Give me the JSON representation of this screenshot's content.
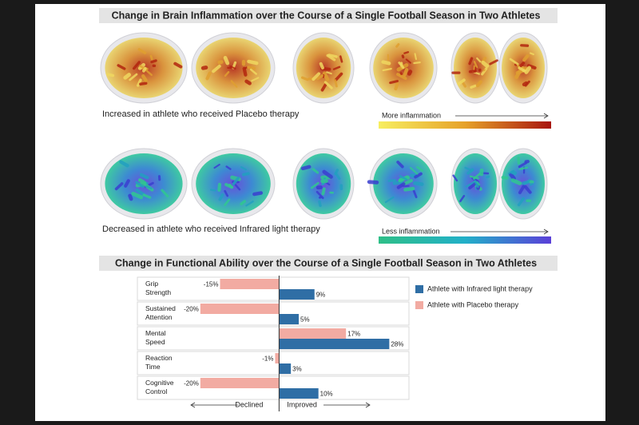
{
  "brain_section": {
    "title": "Change in Brain Inflammation over the Course of a Single Football Season in Two Athletes",
    "placebo_caption": "Increased in athlete who received Placebo therapy",
    "placebo_scale_label": "More inflammation",
    "infrared_caption": "Decreased in athlete who received Infrared light therapy",
    "infrared_scale_label": "Less inflammation"
  },
  "chart_data": {
    "type": "bar",
    "orientation": "horizontal",
    "title": "Change in Functional Ability over the Course of a Single Football Season in Two Athletes",
    "categories": [
      "Grip Strength",
      "Sustained Attention",
      "Mental Speed",
      "Reaction Time",
      "Cognitive Control"
    ],
    "series": [
      {
        "name": "Athlete with Infrared light therapy",
        "color": "#2f6ea5",
        "values": [
          9,
          5,
          28,
          3,
          10
        ],
        "value_labels": [
          "9%",
          "5%",
          "28%",
          "3%",
          "10%"
        ]
      },
      {
        "name": "Athlete with Placebo therapy",
        "color": "#f2aba2",
        "values": [
          -15,
          -20,
          17,
          -1,
          -20
        ],
        "value_labels": [
          "-15%",
          "-20%",
          "17%",
          "-1%",
          "-20%"
        ]
      }
    ],
    "xlim": [
      -36,
      33
    ],
    "xlabel_left": "Declined",
    "xlabel_right": "Improved"
  }
}
